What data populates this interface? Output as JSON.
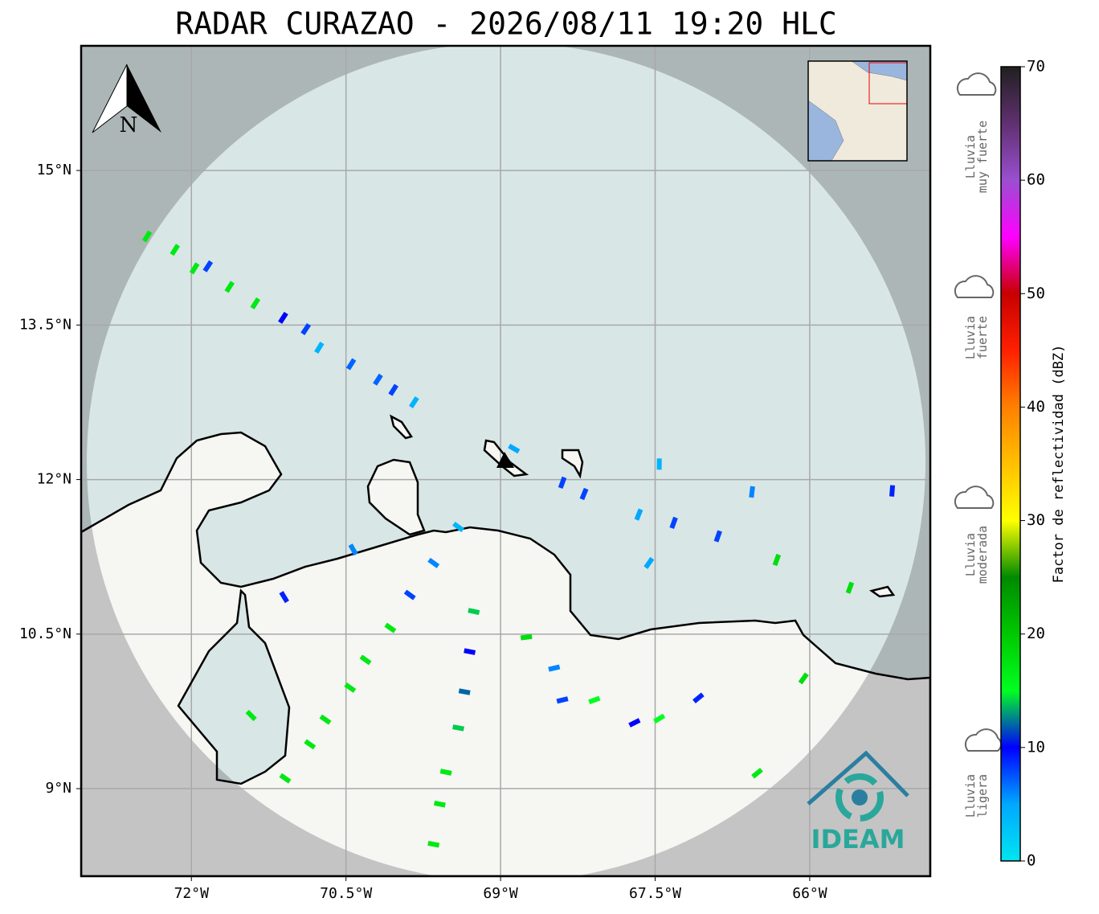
{
  "title": "RADAR CURAZAO - 2026/08/11 19:20 HLC",
  "map": {
    "xlim": [
      -73.07,
      -64.83
    ],
    "ylim": [
      8.15,
      16.21
    ],
    "xticks": [
      {
        "value": -72,
        "label": "72°W"
      },
      {
        "value": -70.5,
        "label": "70.5°W"
      },
      {
        "value": -69,
        "label": "69°W"
      },
      {
        "value": -67.5,
        "label": "67.5°W"
      },
      {
        "value": -66,
        "label": "66°W"
      }
    ],
    "yticks": [
      {
        "value": 15,
        "label": "15°N"
      },
      {
        "value": 13.5,
        "label": "13.5°N"
      },
      {
        "value": 12,
        "label": "12°N"
      },
      {
        "value": 10.5,
        "label": "10.5°N"
      },
      {
        "value": 9,
        "label": "9°N"
      }
    ],
    "grid": true
  },
  "north_label": "N",
  "logo_text": "IDEAM",
  "colorbar": {
    "title": "Factor de reflectividad (dBZ)",
    "range": [
      0,
      70
    ],
    "ticks": [
      0,
      10,
      20,
      30,
      40,
      50,
      60,
      70
    ],
    "colors": [
      "#00e5f0",
      "#00a8ff",
      "#0000ff",
      "#00ff20",
      "#00c800",
      "#008a00",
      "#ffff00",
      "#ffc000",
      "#ff8000",
      "#ff2000",
      "#c80000",
      "#ff00ff",
      "#9a4fd0",
      "#603070",
      "#202020"
    ]
  },
  "rain_labels": [
    {
      "lines": [
        "Lluvia",
        "muy fuerte"
      ]
    },
    {
      "lines": [
        "Lluvia",
        "fuerte"
      ]
    },
    {
      "lines": [
        "Lluvia",
        "moderada"
      ]
    },
    {
      "lines": [
        "Lluvia",
        "ligera"
      ]
    }
  ],
  "echoes": [
    {
      "lon": -72.43,
      "lat": 14.36,
      "dbz": 17
    },
    {
      "lon": -72.16,
      "lat": 14.23,
      "dbz": 17
    },
    {
      "lon": -71.97,
      "lat": 14.05,
      "dbz": 17
    },
    {
      "lon": -71.84,
      "lat": 14.07,
      "dbz": 8
    },
    {
      "lon": -71.63,
      "lat": 13.87,
      "dbz": 17
    },
    {
      "lon": -71.38,
      "lat": 13.71,
      "dbz": 17
    },
    {
      "lon": -71.11,
      "lat": 13.57,
      "dbz": 10
    },
    {
      "lon": -70.89,
      "lat": 13.46,
      "dbz": 8
    },
    {
      "lon": -70.76,
      "lat": 13.28,
      "dbz": 4
    },
    {
      "lon": -70.45,
      "lat": 13.12,
      "dbz": 7
    },
    {
      "lon": -70.19,
      "lat": 12.97,
      "dbz": 7
    },
    {
      "lon": -70.04,
      "lat": 12.87,
      "dbz": 8
    },
    {
      "lon": -69.84,
      "lat": 12.75,
      "dbz": 4
    },
    {
      "lon": -68.87,
      "lat": 12.3,
      "dbz": 5
    },
    {
      "lon": -67.46,
      "lat": 12.15,
      "dbz": 4
    },
    {
      "lon": -68.4,
      "lat": 11.97,
      "dbz": 8
    },
    {
      "lon": -68.19,
      "lat": 11.86,
      "dbz": 8
    },
    {
      "lon": -67.66,
      "lat": 11.66,
      "dbz": 5
    },
    {
      "lon": -67.32,
      "lat": 11.58,
      "dbz": 8
    },
    {
      "lon": -66.89,
      "lat": 11.45,
      "dbz": 8
    },
    {
      "lon": -66.56,
      "lat": 11.88,
      "dbz": 6
    },
    {
      "lon": -65.2,
      "lat": 11.89,
      "dbz": 9
    },
    {
      "lon": -70.43,
      "lat": 11.32,
      "dbz": 6
    },
    {
      "lon": -69.41,
      "lat": 11.54,
      "dbz": 4
    },
    {
      "lon": -69.65,
      "lat": 11.19,
      "dbz": 6
    },
    {
      "lon": -69.88,
      "lat": 10.88,
      "dbz": 8
    },
    {
      "lon": -70.07,
      "lat": 10.56,
      "dbz": 17
    },
    {
      "lon": -70.31,
      "lat": 10.25,
      "dbz": 17
    },
    {
      "lon": -70.46,
      "lat": 9.98,
      "dbz": 17
    },
    {
      "lon": -70.7,
      "lat": 9.67,
      "dbz": 17
    },
    {
      "lon": -70.85,
      "lat": 9.43,
      "dbz": 17
    },
    {
      "lon": -71.09,
      "lat": 9.1,
      "dbz": 17
    },
    {
      "lon": -71.1,
      "lat": 10.86,
      "dbz": 9
    },
    {
      "lon": -71.42,
      "lat": 9.71,
      "dbz": 17
    },
    {
      "lon": -69.26,
      "lat": 10.72,
      "dbz": 14
    },
    {
      "lon": -69.3,
      "lat": 10.33,
      "dbz": 10
    },
    {
      "lon": -69.35,
      "lat": 9.94,
      "dbz": 12
    },
    {
      "lon": -69.41,
      "lat": 9.59,
      "dbz": 14
    },
    {
      "lon": -69.53,
      "lat": 9.16,
      "dbz": 17
    },
    {
      "lon": -69.59,
      "lat": 8.85,
      "dbz": 17
    },
    {
      "lon": -69.65,
      "lat": 8.46,
      "dbz": 17
    },
    {
      "lon": -68.48,
      "lat": 10.17,
      "dbz": 6
    },
    {
      "lon": -68.09,
      "lat": 9.86,
      "dbz": 15
    },
    {
      "lon": -68.4,
      "lat": 9.86,
      "dbz": 8
    },
    {
      "lon": -67.7,
      "lat": 9.64,
      "dbz": 10
    },
    {
      "lon": -67.46,
      "lat": 9.68,
      "dbz": 15
    },
    {
      "lon": -67.08,
      "lat": 9.88,
      "dbz": 9
    },
    {
      "lon": -67.56,
      "lat": 11.19,
      "dbz": 5
    },
    {
      "lon": -66.06,
      "lat": 10.07,
      "dbz": 18
    },
    {
      "lon": -65.61,
      "lat": 10.95,
      "dbz": 18
    },
    {
      "lon": -66.51,
      "lat": 9.15,
      "dbz": 17
    },
    {
      "lon": -68.75,
      "lat": 10.47,
      "dbz": 18
    },
    {
      "lon": -66.32,
      "lat": 11.22,
      "dbz": 18
    }
  ]
}
